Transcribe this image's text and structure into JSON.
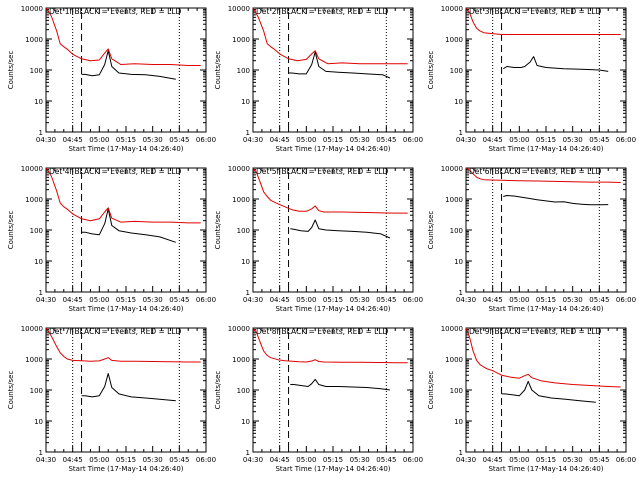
{
  "common": {
    "ylabel": "Counts/sec",
    "xlabel": "Start Time (17-May-14 04:26:40)",
    "x_tick_labels": [
      "04:30",
      "04:45",
      "05:00",
      "05:15",
      "05:30",
      "05:45",
      "06:00"
    ],
    "y_tick_labels": [
      "1",
      "10",
      "100",
      "1000",
      "10000"
    ],
    "x_ticks_minutes": [
      0,
      15,
      30,
      45,
      60,
      75,
      90
    ],
    "y_ticks": [
      1,
      10,
      100,
      1000,
      10000
    ],
    "xlim_minutes": [
      0,
      90
    ],
    "ylim": [
      1,
      10000
    ],
    "y_scale": "log",
    "colors": {
      "events": "#000000",
      "lld": "#e00000",
      "axes": "#000000"
    }
  },
  "chart_data": [
    {
      "type": "line",
      "title": "Det 1f BLACK = Events, RED = LLD",
      "vlines_dotted": [
        15,
        75
      ],
      "vline_dashed": 20,
      "series": [
        {
          "name": "Events",
          "x": [
            20,
            22,
            26,
            30,
            33,
            35,
            37,
            41,
            48,
            56,
            64,
            73
          ],
          "y": [
            72,
            72,
            65,
            70,
            150,
            420,
            130,
            80,
            72,
            70,
            62,
            50
          ]
        },
        {
          "name": "LLD",
          "x": [
            0,
            3,
            6,
            8,
            10,
            12,
            15,
            20,
            25,
            30,
            33,
            35,
            37,
            42,
            50,
            60,
            70,
            80,
            87
          ],
          "y": [
            10000,
            5500,
            1800,
            700,
            560,
            470,
            320,
            230,
            200,
            210,
            350,
            480,
            230,
            150,
            160,
            150,
            150,
            140,
            140
          ]
        }
      ]
    },
    {
      "type": "line",
      "title": "Det 2f BLACK = Events, RED = LLD",
      "vlines_dotted": [
        15,
        75
      ],
      "vline_dashed": 20,
      "series": [
        {
          "name": "Events",
          "x": [
            20,
            22,
            26,
            30,
            33,
            35,
            37,
            41,
            48,
            56,
            64,
            73,
            77
          ],
          "y": [
            80,
            80,
            75,
            75,
            150,
            380,
            130,
            90,
            85,
            80,
            75,
            70,
            55
          ]
        },
        {
          "name": "LLD",
          "x": [
            0,
            3,
            6,
            8,
            10,
            12,
            15,
            20,
            25,
            30,
            33,
            35,
            37,
            42,
            50,
            60,
            70,
            80,
            87
          ],
          "y": [
            10000,
            5000,
            1800,
            700,
            560,
            470,
            330,
            230,
            200,
            220,
            330,
            420,
            230,
            160,
            170,
            160,
            160,
            160,
            160
          ]
        }
      ]
    },
    {
      "type": "line",
      "title": "Det 3f BLACK = Events, RED = LLD",
      "vlines_dotted": [
        15,
        75
      ],
      "vline_dashed": 20,
      "series": [
        {
          "name": "Events",
          "x": [
            21,
            23,
            27,
            31,
            33,
            36,
            38,
            40,
            45,
            55,
            65,
            75,
            80
          ],
          "y": [
            110,
            130,
            120,
            120,
            130,
            180,
            270,
            140,
            120,
            110,
            105,
            100,
            90
          ]
        },
        {
          "name": "LLD",
          "x": [
            0,
            2,
            4,
            6,
            8,
            10,
            14,
            20,
            30,
            40,
            50,
            60,
            70,
            80,
            87
          ],
          "y": [
            10000,
            7000,
            3500,
            2200,
            1800,
            1600,
            1500,
            1400,
            1400,
            1400,
            1400,
            1400,
            1400,
            1400,
            1400
          ]
        }
      ]
    },
    {
      "type": "line",
      "title": "Det 4f BLACK = Events, RED = LLD",
      "vlines_dotted": [
        15,
        75
      ],
      "vline_dashed": 20,
      "series": [
        {
          "name": "Events",
          "x": [
            20,
            22,
            26,
            30,
            33,
            35,
            37,
            41,
            48,
            56,
            64,
            73
          ],
          "y": [
            85,
            85,
            75,
            70,
            160,
            480,
            140,
            95,
            80,
            70,
            60,
            40
          ]
        },
        {
          "name": "LLD",
          "x": [
            0,
            3,
            6,
            8,
            10,
            12,
            15,
            20,
            25,
            30,
            33,
            35,
            37,
            42,
            50,
            60,
            70,
            80,
            87
          ],
          "y": [
            10000,
            5500,
            1800,
            750,
            560,
            470,
            330,
            230,
            200,
            230,
            380,
            520,
            240,
            180,
            190,
            180,
            180,
            170,
            170
          ]
        }
      ]
    },
    {
      "type": "line",
      "title": "Det 5f BLACK = Events, RED = LLD",
      "vlines_dotted": [
        15,
        75
      ],
      "vline_dashed": 20,
      "series": [
        {
          "name": "Events",
          "x": [
            21,
            23,
            27,
            31,
            33,
            35,
            37,
            41,
            48,
            56,
            64,
            72,
            77
          ],
          "y": [
            110,
            105,
            95,
            90,
            120,
            210,
            110,
            100,
            95,
            90,
            85,
            75,
            55
          ]
        },
        {
          "name": "LLD",
          "x": [
            0,
            2,
            4,
            6,
            8,
            10,
            14,
            18,
            22,
            26,
            30,
            33,
            35,
            37,
            40,
            50,
            60,
            70,
            80,
            87
          ],
          "y": [
            10000,
            7000,
            3500,
            1700,
            1200,
            900,
            700,
            560,
            450,
            400,
            400,
            480,
            600,
            420,
            380,
            380,
            370,
            360,
            350,
            350
          ]
        }
      ]
    },
    {
      "type": "line",
      "title": "Det 6f BLACK = Events, RED = LLD",
      "vlines_dotted": [
        15,
        75
      ],
      "vline_dashed": 20,
      "series": [
        {
          "name": "Events",
          "x": [
            21,
            23,
            27,
            31,
            35,
            40,
            45,
            50,
            55,
            60,
            65,
            70,
            75,
            80
          ],
          "y": [
            1200,
            1300,
            1250,
            1150,
            1050,
            950,
            870,
            800,
            820,
            720,
            680,
            650,
            650,
            660
          ]
        },
        {
          "name": "LLD",
          "x": [
            0,
            2,
            4,
            6,
            8,
            10,
            14,
            20,
            30,
            40,
            50,
            60,
            70,
            80,
            87
          ],
          "y": [
            10000,
            8500,
            6500,
            5000,
            4500,
            4200,
            4100,
            4000,
            3900,
            3800,
            3700,
            3600,
            3500,
            3500,
            3400
          ]
        }
      ]
    },
    {
      "type": "line",
      "title": "Det 7f BLACK = Events, RED = LLD",
      "vlines_dotted": [
        15,
        75
      ],
      "vline_dashed": 20,
      "series": [
        {
          "name": "Events",
          "x": [
            20,
            22,
            26,
            30,
            33,
            35,
            37,
            41,
            48,
            56,
            64,
            73
          ],
          "y": [
            65,
            65,
            60,
            65,
            130,
            340,
            120,
            75,
            60,
            55,
            50,
            45
          ]
        },
        {
          "name": "LLD",
          "x": [
            0,
            3,
            6,
            8,
            10,
            12,
            15,
            20,
            25,
            30,
            33,
            35,
            37,
            42,
            50,
            60,
            70,
            80,
            87
          ],
          "y": [
            10000,
            5500,
            2500,
            1600,
            1200,
            1000,
            900,
            880,
            850,
            870,
            1000,
            1100,
            900,
            850,
            850,
            830,
            820,
            800,
            800
          ]
        }
      ]
    },
    {
      "type": "line",
      "title": "Det 8f BLACK = Events, RED = LLD",
      "vlines_dotted": [
        15,
        75
      ],
      "vline_dashed": 20,
      "series": [
        {
          "name": "Events",
          "x": [
            21,
            23,
            27,
            31,
            33,
            35,
            37,
            41,
            48,
            56,
            64,
            72,
            77
          ],
          "y": [
            150,
            150,
            140,
            130,
            160,
            220,
            150,
            130,
            130,
            125,
            120,
            110,
            100
          ]
        },
        {
          "name": "LLD",
          "x": [
            0,
            2,
            4,
            6,
            8,
            10,
            14,
            18,
            22,
            26,
            30,
            33,
            35,
            37,
            40,
            50,
            60,
            70,
            80,
            87
          ],
          "y": [
            10000,
            7000,
            3500,
            1800,
            1300,
            1100,
            950,
            880,
            850,
            820,
            800,
            860,
            950,
            830,
            800,
            790,
            780,
            770,
            760,
            760
          ]
        }
      ]
    },
    {
      "type": "line",
      "title": "Det 9f BLACK = Events, RED = LLD",
      "vlines_dotted": [
        15,
        75
      ],
      "vline_dashed": 20,
      "series": [
        {
          "name": "Events",
          "x": [
            20,
            22,
            26,
            30,
            33,
            35,
            37,
            41,
            48,
            56,
            64,
            73
          ],
          "y": [
            75,
            75,
            70,
            65,
            100,
            190,
            100,
            65,
            55,
            50,
            45,
            40
          ]
        },
        {
          "name": "LLD",
          "x": [
            0,
            2,
            4,
            6,
            8,
            10,
            12,
            15,
            20,
            25,
            30,
            33,
            35,
            37,
            42,
            50,
            60,
            70,
            80,
            87
          ],
          "y": [
            10000,
            5000,
            1800,
            900,
            650,
            550,
            480,
            420,
            300,
            260,
            240,
            290,
            320,
            250,
            200,
            170,
            150,
            140,
            130,
            125
          ]
        }
      ]
    }
  ]
}
